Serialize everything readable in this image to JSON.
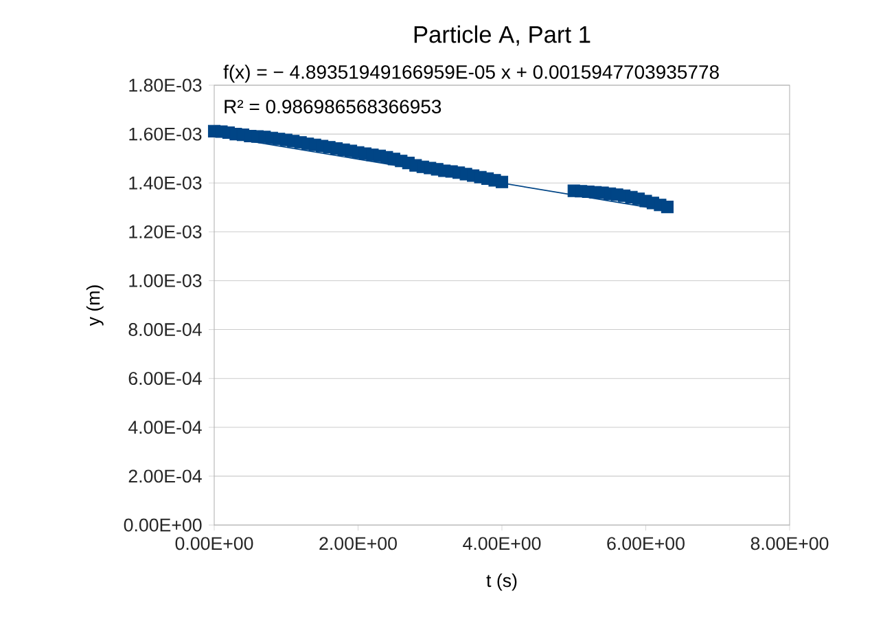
{
  "chart_data": {
    "type": "scatter",
    "title": "Particle A, Part 1",
    "xlabel": "t (s)",
    "ylabel": "y (m)",
    "annotations": [
      "f(x) = − 4.89351949166959E-05 x + 0.0015947703935778",
      "R² = 0.986986568366953"
    ],
    "grid": "y",
    "xlim": [
      0,
      8
    ],
    "ylim": [
      0,
      0.0018
    ],
    "xticks": [
      {
        "value": 0,
        "label": "0.00E+00"
      },
      {
        "value": 2,
        "label": "2.00E+00"
      },
      {
        "value": 4,
        "label": "4.00E+00"
      },
      {
        "value": 6,
        "label": "6.00E+00"
      },
      {
        "value": 8,
        "label": "8.00E+00"
      }
    ],
    "yticks": [
      {
        "value": 0,
        "label": "0.00E+00"
      },
      {
        "value": 0.0002,
        "label": "2.00E-04"
      },
      {
        "value": 0.0004,
        "label": "4.00E-04"
      },
      {
        "value": 0.0006,
        "label": "6.00E-04"
      },
      {
        "value": 0.0008,
        "label": "8.00E-04"
      },
      {
        "value": 0.001,
        "label": "1.00E-03"
      },
      {
        "value": 0.0012,
        "label": "1.20E-03"
      },
      {
        "value": 0.0014,
        "label": "1.40E-03"
      },
      {
        "value": 0.0016,
        "label": "1.60E-03"
      },
      {
        "value": 0.0018,
        "label": "1.80E-03"
      }
    ],
    "series": [
      {
        "color": "#004586",
        "marker": "square",
        "x": [
          0,
          0.1,
          0.2,
          0.3,
          0.4,
          0.5,
          0.6,
          0.7,
          0.8,
          0.9,
          1.0,
          1.1,
          1.2,
          1.3,
          1.4,
          1.5,
          1.6,
          1.7,
          1.8,
          1.9,
          2.0,
          2.1,
          2.2,
          2.3,
          2.4,
          2.5,
          2.6,
          2.7,
          2.8,
          2.9,
          3.0,
          3.1,
          3.2,
          3.3,
          3.4,
          3.5,
          3.6,
          3.7,
          3.8,
          3.9,
          4.0,
          5.0,
          5.1,
          5.2,
          5.3,
          5.4,
          5.5,
          5.6,
          5.7,
          5.8,
          5.9,
          6.0,
          6.1,
          6.2,
          6.3
        ],
        "values": [
          0.001612,
          0.00161,
          0.001606,
          0.0016,
          0.001597,
          0.001592,
          0.00159,
          0.001588,
          0.001584,
          0.00158,
          0.001576,
          0.001571,
          0.001566,
          0.00156,
          0.001556,
          0.001551,
          0.001546,
          0.001541,
          0.001536,
          0.001531,
          0.001525,
          0.00152,
          0.001515,
          0.001511,
          0.001505,
          0.001498,
          0.00149,
          0.001482,
          0.001472,
          0.001466,
          0.001461,
          0.001456,
          0.00145,
          0.001447,
          0.001442,
          0.001436,
          0.00143,
          0.001424,
          0.001418,
          0.001411,
          0.001404,
          0.001368,
          0.001366,
          0.001364,
          0.001362,
          0.00136,
          0.001356,
          0.001352,
          0.001348,
          0.001342,
          0.001335,
          0.001326,
          0.001318,
          0.00131,
          0.001302
        ]
      },
      {
        "type": "line",
        "marker": "none",
        "color": "#004586",
        "x": [
          0,
          6.3
        ],
        "values": [
          0.001595,
          0.001287
        ]
      }
    ]
  }
}
